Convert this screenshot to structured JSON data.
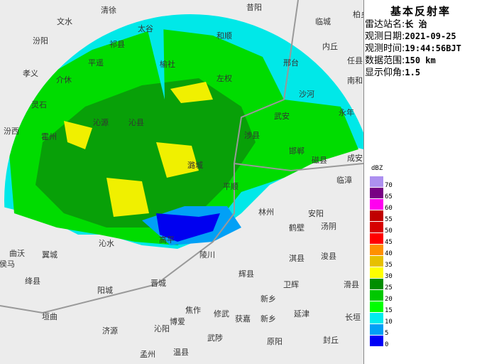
{
  "panel": {
    "title": "基本反射率",
    "rows": [
      {
        "label": "雷达站名:",
        "value": "长 治"
      },
      {
        "label": "观测日期:",
        "value": "2021-09-25"
      },
      {
        "label": "观测时间:",
        "value": "19:44:56BJT"
      },
      {
        "label": "数据范围:",
        "value": "150 km"
      },
      {
        "label": "显示仰角:",
        "value": "1.5"
      }
    ]
  },
  "legend": {
    "unit": "dBZ",
    "levels": [
      {
        "value": "70",
        "color": "#ad90f0"
      },
      {
        "value": "65",
        "color": "#780084"
      },
      {
        "value": "60",
        "color": "#ff00f0"
      },
      {
        "value": "55",
        "color": "#c00000"
      },
      {
        "value": "50",
        "color": "#d60000"
      },
      {
        "value": "45",
        "color": "#ff0000"
      },
      {
        "value": "40",
        "color": "#ff9000"
      },
      {
        "value": "35",
        "color": "#e7c000"
      },
      {
        "value": "30",
        "color": "#ffff00"
      },
      {
        "value": "25",
        "color": "#008e00"
      },
      {
        "value": "20",
        "color": "#00c800"
      },
      {
        "value": "15",
        "color": "#00ff00"
      },
      {
        "value": "10",
        "color": "#00ecec"
      },
      {
        "value": "5",
        "color": "#01a0f6"
      },
      {
        "value": "0",
        "color": "#0000f6"
      }
    ]
  },
  "cities": [
    "清徐",
    "文水",
    "汾阳",
    "孝义",
    "介休",
    "平遥",
    "祁县",
    "太谷",
    "灵石",
    "汾西",
    "霍州",
    "沁源",
    "沁县",
    "榆社",
    "昔阳",
    "和顺",
    "左权",
    "邢台",
    "临城",
    "柏乡",
    "内丘",
    "任县",
    "南和",
    "沙河",
    "永年",
    "武安",
    "涉县",
    "邯郸",
    "磁县",
    "成安",
    "临漳",
    "潞城",
    "平顺",
    "陵川",
    "林州",
    "安阳",
    "鹤壁",
    "汤阴",
    "淇县",
    "浚县",
    "辉县",
    "卫辉",
    "滑县",
    "新乡",
    "新乡",
    "延津",
    "长垣",
    "获嘉",
    "修武",
    "焦作",
    "博爱",
    "武陟",
    "原阳",
    "封丘",
    "温县",
    "孟州",
    "沁阳",
    "济源",
    "垣曲",
    "阳城",
    "晋城",
    "绛县",
    "侯马",
    "曲沃",
    "翼城",
    "沁水",
    "高平"
  ]
}
